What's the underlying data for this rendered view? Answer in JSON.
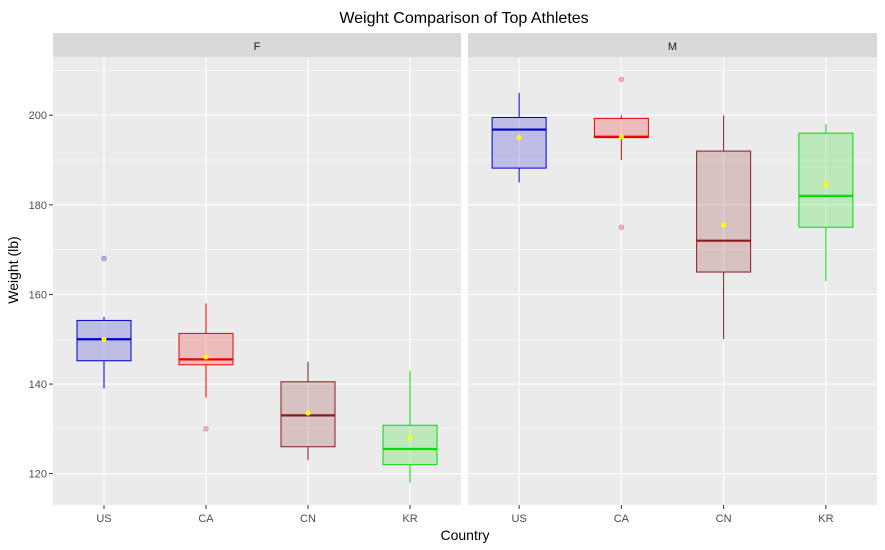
{
  "chart_data": {
    "type": "boxplot",
    "title": "Weight Comparison of Top Athletes",
    "xlabel": "Country",
    "ylabel": "Weight (lb)",
    "categories": [
      "US",
      "CA",
      "CN",
      "KR"
    ],
    "ylim": [
      113,
      213
    ],
    "yticks": [
      120,
      140,
      160,
      180,
      200
    ],
    "grid": true,
    "colors": {
      "US": "#0000cc",
      "CA": "#ee0000",
      "CN": "#8b1a1a",
      "KR": "#00dd00",
      "mean_marker": "#ffff00",
      "panel_bg": "#ebebeb",
      "strip_bg": "#d9d9d9",
      "grid": "#ffffff"
    },
    "facets": [
      {
        "label": "F",
        "boxes": [
          {
            "category": "US",
            "min": 139,
            "q1": 145.2,
            "median": 150,
            "q3": 154.2,
            "max": 155,
            "mean": 150,
            "outliers": [
              168
            ]
          },
          {
            "category": "CA",
            "min": 137,
            "q1": 144.3,
            "median": 145.5,
            "q3": 151.3,
            "max": 158,
            "mean": 146,
            "outliers": [
              130
            ]
          },
          {
            "category": "CN",
            "min": 123,
            "q1": 126,
            "median": 133,
            "q3": 140.5,
            "max": 145,
            "mean": 133.5,
            "outliers": []
          },
          {
            "category": "KR",
            "min": 118,
            "q1": 122,
            "median": 125.5,
            "q3": 130.8,
            "max": 143,
            "mean": 128,
            "outliers": []
          }
        ]
      },
      {
        "label": "M",
        "boxes": [
          {
            "category": "US",
            "min": 185,
            "q1": 188.2,
            "median": 196.8,
            "q3": 199.5,
            "max": 205,
            "mean": 195,
            "outliers": []
          },
          {
            "category": "CA",
            "min": 190,
            "q1": 195,
            "median": 195.2,
            "q3": 199.3,
            "max": 200,
            "mean": 195.2,
            "outliers": [
              208,
              175
            ]
          },
          {
            "category": "CN",
            "min": 150,
            "q1": 165,
            "median": 172,
            "q3": 192,
            "max": 200,
            "mean": 175.5,
            "outliers": []
          },
          {
            "category": "KR",
            "min": 163,
            "q1": 175,
            "median": 182,
            "q3": 196,
            "max": 198,
            "mean": 184.5,
            "outliers": []
          }
        ]
      }
    ]
  }
}
